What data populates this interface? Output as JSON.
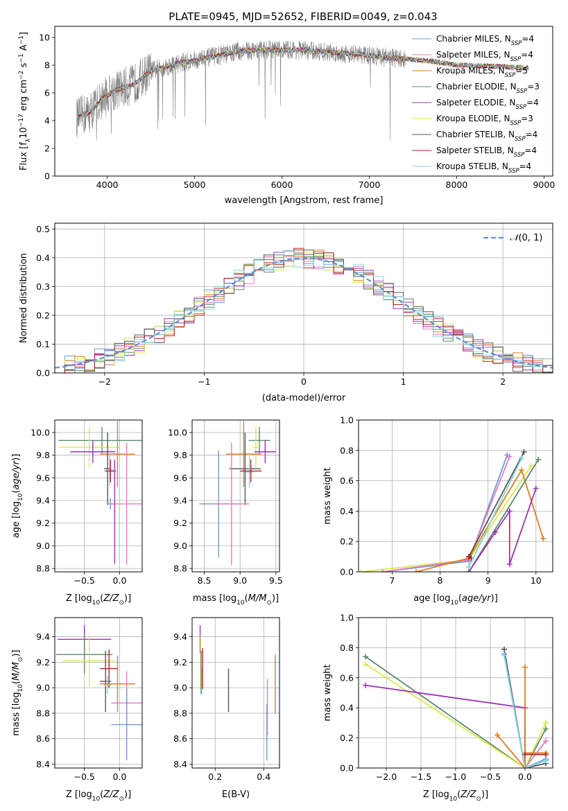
{
  "figure": {
    "title": "PLATE=0945, MJD=52652, FIBERID=0049, z=0.043"
  },
  "series_styles": [
    {
      "name": "Chabrier MILES, N_SSP=4",
      "color": "#6b9bd6"
    },
    {
      "name": "Salpeter MILES, N_SSP=4",
      "color": "#e37bc1"
    },
    {
      "name": "Kroupa MILES, N_SSP=5",
      "color": "#e07a1f"
    },
    {
      "name": "Chabrier ELODIE, N_SSP=3",
      "color": "#5a8a6a"
    },
    {
      "name": "Salpeter ELODIE, N_SSP=4",
      "color": "#9b30b8"
    },
    {
      "name": "Kroupa ELODIE, N_SSP=3",
      "color": "#d8e84a"
    },
    {
      "name": "Chabrier STELIB, N_SSP=4",
      "color": "#555555"
    },
    {
      "name": "Salpeter STELIB, N_SSP=4",
      "color": "#b22222"
    },
    {
      "name": "Kroupa STELIB, N_SSP=4",
      "color": "#7fd6dc"
    }
  ],
  "legend_spectrum": [
    {
      "base": "Chabrier MILES, N",
      "sub": "SSP",
      "tail": "=4",
      "color": "#6b9bd6"
    },
    {
      "base": "Salpeter MILES, N",
      "sub": "SSP",
      "tail": "=4",
      "color": "#e37bc1"
    },
    {
      "base": "Kroupa MILES, N",
      "sub": "SSP",
      "tail": "=5",
      "color": "#e07a1f"
    },
    {
      "base": "Chabrier ELODIE, N",
      "sub": "SSP",
      "tail": "=3",
      "color": "#5a8a6a"
    },
    {
      "base": "Salpeter ELODIE, N",
      "sub": "SSP",
      "tail": "=4",
      "color": "#9b30b8"
    },
    {
      "base": "Kroupa ELODIE, N",
      "sub": "SSP",
      "tail": "=3",
      "color": "#d8e84a"
    },
    {
      "base": "Chabrier STELIB, N",
      "sub": "SSP",
      "tail": "=4",
      "color": "#555555"
    },
    {
      "base": "Salpeter STELIB, N",
      "sub": "SSP",
      "tail": "=4",
      "color": "#b22222"
    },
    {
      "base": "Kroupa STELIB, N",
      "sub": "SSP",
      "tail": "=4",
      "color": "#7fd6dc"
    }
  ],
  "chart_data": [
    {
      "id": "spectrum",
      "type": "line",
      "xlabel": "wavelength [Angstrom, rest frame]",
      "ylabel": "Flux [f_λ 10^-17 erg cm^-2 s^-1 A^-1]",
      "xlim": [
        3400,
        9100
      ],
      "ylim": [
        0,
        10.8
      ],
      "xticks": [
        4000,
        5000,
        6000,
        7000,
        8000,
        9000
      ],
      "yticks": [
        0,
        2,
        4,
        6,
        8,
        10
      ],
      "legend": "top-right",
      "data_color": "#808080",
      "continuum": [
        [
          3650,
          4.2
        ],
        [
          3800,
          4.6
        ],
        [
          3950,
          5.6
        ],
        [
          4100,
          6.2
        ],
        [
          4300,
          6.6
        ],
        [
          4500,
          7.6
        ],
        [
          4800,
          8.1
        ],
        [
          5200,
          8.6
        ],
        [
          5500,
          9.0
        ],
        [
          5800,
          9.1
        ],
        [
          6200,
          9.1
        ],
        [
          6600,
          8.9
        ],
        [
          7000,
          8.7
        ],
        [
          7300,
          8.5
        ],
        [
          7700,
          8.3
        ],
        [
          8000,
          8.0
        ],
        [
          8500,
          7.9
        ],
        [
          8800,
          7.8
        ]
      ],
      "model_range": [
        3650,
        8820
      ],
      "data_range": [
        3650,
        7420
      ]
    },
    {
      "id": "residuals",
      "type": "histogram",
      "xlabel": "(data-model)/error",
      "ylabel": "Normed distribution",
      "xlim": [
        -2.5,
        2.5
      ],
      "ylim": [
        0,
        0.52
      ],
      "xticks": [
        -2,
        -1,
        0,
        1,
        2
      ],
      "yticks": [
        0.0,
        0.1,
        0.2,
        0.3,
        0.4,
        0.5
      ],
      "grid": true,
      "legend": "top-right",
      "reference_curve": {
        "name": "N(0,1)",
        "color": "#5b8fd9",
        "style": "dashed"
      },
      "bin_width": 0.1
    },
    {
      "id": "age-vs-Z",
      "type": "errorbar",
      "xlabel": "Z [log10(Z/Z⊙)]",
      "ylabel": "age [log10(age/yr)]",
      "xlim": [
        -0.92,
        0.32
      ],
      "ylim": [
        8.77,
        10.11
      ],
      "xticks": [
        -0.5,
        0.0
      ],
      "yticks": [
        8.8,
        9.0,
        9.2,
        9.4,
        9.6,
        9.8,
        10.0
      ],
      "points": [
        {
          "x": -0.25,
          "y": 9.93,
          "xerr": 0.62,
          "yerr": 0.12,
          "color": "#5a8a6a"
        },
        {
          "x": -0.43,
          "y": 9.87,
          "xerr": 0.43,
          "yerr": 0.18,
          "color": "#d8e84a"
        },
        {
          "x": -0.38,
          "y": 9.83,
          "xerr": 0.32,
          "yerr": 0.1,
          "color": "#9b30b8"
        },
        {
          "x": -0.03,
          "y": 9.81,
          "xerr": 0.25,
          "yerr": 0.29,
          "color": "#e07a1f"
        },
        {
          "x": -0.17,
          "y": 9.68,
          "xerr": 0.05,
          "yerr": 0.32,
          "color": "#555555"
        },
        {
          "x": -0.14,
          "y": 9.67,
          "xerr": 0.05,
          "yerr": 0.14,
          "color": "#7fd6dc"
        },
        {
          "x": -0.13,
          "y": 9.66,
          "xerr": 0.08,
          "yerr": 0.1,
          "color": "#b22222"
        },
        {
          "x": -0.13,
          "y": 9.37,
          "xerr": 0.05,
          "yerr": 0.05,
          "color": "#6b9bd6"
        },
        {
          "x": 0.1,
          "y": 9.37,
          "xerr": 0.22,
          "yerr": 0.54,
          "color": "#e37bc1"
        },
        {
          "x": -0.07,
          "y": 9.3,
          "xerr": 0.01,
          "yerr": 0.46,
          "color": "#9b30b8"
        }
      ]
    },
    {
      "id": "age-vs-mass",
      "type": "errorbar",
      "xlabel": "mass [log10(M/M⊙)]",
      "xlim": [
        8.33,
        9.55
      ],
      "ylim": [
        8.77,
        10.11
      ],
      "xticks": [
        8.5,
        9.0,
        9.5
      ],
      "yticks": [
        8.8,
        9.0,
        9.2,
        9.4,
        9.6,
        9.8,
        10.0
      ],
      "points": [
        {
          "x": 9.27,
          "y": 9.93,
          "xerr": 0.15,
          "yerr": 0.12,
          "color": "#5a8a6a"
        },
        {
          "x": 9.22,
          "y": 9.87,
          "xerr": 0.05,
          "yerr": 0.18,
          "color": "#d8e84a"
        },
        {
          "x": 9.35,
          "y": 9.83,
          "xerr": 0.15,
          "yerr": 0.1,
          "color": "#9b30b8"
        },
        {
          "x": 9.05,
          "y": 9.81,
          "xerr": 0.25,
          "yerr": 0.29,
          "color": "#e07a1f"
        },
        {
          "x": 9.07,
          "y": 9.68,
          "xerr": 0.22,
          "yerr": 0.32,
          "color": "#555555"
        },
        {
          "x": 9.13,
          "y": 9.65,
          "xerr": 0.05,
          "yerr": 0.14,
          "color": "#7fd6dc"
        },
        {
          "x": 9.15,
          "y": 9.66,
          "xerr": 0.15,
          "yerr": 0.1,
          "color": "#b22222"
        },
        {
          "x": 8.7,
          "y": 9.37,
          "xerr": 0.27,
          "yerr": 0.47,
          "color": "#6b9bd6"
        },
        {
          "x": 8.88,
          "y": 9.37,
          "xerr": 0.25,
          "yerr": 0.54,
          "color": "#e37bc1"
        }
      ]
    },
    {
      "id": "weight-vs-age",
      "type": "line",
      "xlabel": "age [log10(age/yr)]",
      "ylabel": "mass weight",
      "xlim": [
        6.3,
        10.35
      ],
      "ylim": [
        0,
        1
      ],
      "xticks": [
        7,
        8,
        9,
        10
      ],
      "yticks": [
        0.0,
        0.2,
        0.4,
        0.6,
        0.8,
        1.0
      ],
      "grid": true,
      "series": [
        {
          "color": "#d8e84a",
          "points": [
            [
              6.35,
              0.0
            ],
            [
              8.6,
              0.08
            ],
            [
              9.9,
              0.7
            ]
          ]
        },
        {
          "color": "#6b9bd6",
          "points": [
            [
              6.8,
              0.0
            ],
            [
              8.6,
              0.07
            ],
            [
              9.4,
              0.77
            ]
          ]
        },
        {
          "color": "#e37bc1",
          "points": [
            [
              6.8,
              0.0
            ],
            [
              8.6,
              0.08
            ],
            [
              9.45,
              0.76
            ]
          ]
        },
        {
          "color": "#e07a1f",
          "points": [
            [
              7.5,
              0.0
            ],
            [
              8.6,
              0.09
            ],
            [
              9.7,
              0.67
            ],
            [
              10.15,
              0.22
            ]
          ]
        },
        {
          "color": "#5a8a6a",
          "points": [
            [
              8.6,
              0.0
            ],
            [
              10.05,
              0.74
            ]
          ]
        },
        {
          "color": "#555555",
          "points": [
            [
              8.6,
              0.1
            ],
            [
              9.75,
              0.79
            ]
          ]
        },
        {
          "color": "#9b30b8",
          "points": [
            [
              8.6,
              0.0
            ],
            [
              9.15,
              0.26
            ],
            [
              9.45,
              0.4
            ],
            [
              9.45,
              0.05
            ],
            [
              10.0,
              0.55
            ]
          ]
        },
        {
          "color": "#b22222",
          "points": [
            [
              8.6,
              0.1
            ],
            [
              8.65,
              0.09
            ]
          ]
        },
        {
          "color": "#7fd6dc",
          "points": [
            [
              8.6,
              0.03
            ],
            [
              9.7,
              0.75
            ]
          ]
        }
      ]
    },
    {
      "id": "mass-vs-Z",
      "type": "errorbar",
      "xlabel": "Z [log10(Z/Z⊙)]",
      "ylabel": "mass [log10(M/M⊙)]",
      "xlim": [
        -0.92,
        0.32
      ],
      "ylim": [
        8.37,
        9.55
      ],
      "xticks": [
        -0.5,
        0.0
      ],
      "yticks": [
        8.4,
        8.6,
        8.8,
        9.0,
        9.2,
        9.4
      ],
      "points": [
        {
          "x": -0.5,
          "y": 9.38,
          "xerr": 0.38,
          "yerr": 0.11,
          "color": "#9b30b8"
        },
        {
          "x": -0.5,
          "y": 9.26,
          "xerr": 0.4,
          "yerr": 0.15,
          "color": "#5a8a6a"
        },
        {
          "x": -0.43,
          "y": 9.21,
          "xerr": 0.38,
          "yerr": 0.2,
          "color": "#d8e84a"
        },
        {
          "x": -0.15,
          "y": 9.15,
          "xerr": 0.13,
          "yerr": 0.15,
          "color": "#b22222"
        },
        {
          "x": -0.2,
          "y": 9.05,
          "xerr": 0.08,
          "yerr": 0.24,
          "color": "#555555"
        },
        {
          "x": -0.17,
          "y": 9.02,
          "xerr": 0.05,
          "yerr": 0.07,
          "color": "#7fd6dc"
        },
        {
          "x": -0.03,
          "y": 9.03,
          "xerr": 0.25,
          "yerr": 0.22,
          "color": "#e07a1f"
        },
        {
          "x": 0.1,
          "y": 8.88,
          "xerr": 0.22,
          "yerr": 0.25,
          "color": "#e37bc1"
        },
        {
          "x": 0.1,
          "y": 8.71,
          "xerr": 0.22,
          "yerr": 0.28,
          "color": "#6b9bd6"
        }
      ]
    },
    {
      "id": "mass-vs-ebv",
      "type": "errorbar",
      "xlabel": "E(B-V)",
      "xlim": [
        0.105,
        0.465
      ],
      "ylim": [
        8.37,
        9.55
      ],
      "xticks": [
        0.2,
        0.4
      ],
      "yticks": [
        8.4,
        8.6,
        8.8,
        9.0,
        9.2,
        9.4
      ],
      "points": [
        {
          "x": 0.138,
          "y": 9.38,
          "xerr": 0,
          "yerr": 0.11,
          "color": "#9b30b8"
        },
        {
          "x": 0.14,
          "y": 9.2,
          "xerr": 0,
          "yerr": 0.21,
          "color": "#d8e84a"
        },
        {
          "x": 0.142,
          "y": 9.12,
          "xerr": 0,
          "yerr": 0.17,
          "color": "#5a8a6a"
        },
        {
          "x": 0.145,
          "y": 9.05,
          "xerr": 0,
          "yerr": 0.1,
          "color": "#7fd6dc"
        },
        {
          "x": 0.148,
          "y": 9.15,
          "xerr": 0,
          "yerr": 0.16,
          "color": "#b22222"
        },
        {
          "x": 0.255,
          "y": 8.98,
          "xerr": 0,
          "yerr": 0.17,
          "color": "#555555"
        },
        {
          "x": 0.415,
          "y": 8.85,
          "xerr": 0,
          "yerr": 0.22,
          "color": "#e37bc1"
        },
        {
          "x": 0.413,
          "y": 8.65,
          "xerr": 0,
          "yerr": 0.22,
          "color": "#6b9bd6"
        },
        {
          "x": 0.448,
          "y": 9.03,
          "xerr": 0,
          "yerr": 0.23,
          "color": "#e07a1f"
        }
      ]
    },
    {
      "id": "weight-vs-Z",
      "type": "line",
      "xlabel": "Z [log10(Z/Z⊙)]",
      "ylabel": "mass weight",
      "xlim": [
        -2.4,
        0.4
      ],
      "ylim": [
        0,
        1
      ],
      "xticks": [
        -2.0,
        -1.5,
        -1.0,
        -0.5,
        0.0
      ],
      "yticks": [
        0.0,
        0.2,
        0.4,
        0.6,
        0.8,
        1.0
      ],
      "grid": true,
      "series": [
        {
          "color": "#5a8a6a",
          "points": [
            [
              -2.3,
              0.74
            ],
            [
              0.0,
              0.0
            ],
            [
              0.3,
              0.26
            ]
          ]
        },
        {
          "color": "#d8e84a",
          "points": [
            [
              -2.3,
              0.69
            ],
            [
              0.0,
              0.0
            ],
            [
              0.3,
              0.3
            ]
          ]
        },
        {
          "color": "#9b30b8",
          "points": [
            [
              -2.3,
              0.55
            ],
            [
              0.0,
              0.4
            ],
            [
              0.0,
              0.0
            ],
            [
              0.3,
              0.05
            ]
          ]
        },
        {
          "color": "#e07a1f",
          "points": [
            [
              -0.4,
              0.22
            ],
            [
              0.0,
              0.0
            ],
            [
              0.0,
              0.67
            ],
            [
              0.0,
              0.1
            ],
            [
              0.3,
              0.1
            ]
          ]
        },
        {
          "color": "#555555",
          "points": [
            [
              -0.3,
              0.79
            ],
            [
              0.0,
              0.0
            ],
            [
              0.3,
              0.03
            ]
          ]
        },
        {
          "color": "#6b9bd6",
          "points": [
            [
              -0.3,
              0.76
            ],
            [
              0.0,
              0.0
            ],
            [
              0.3,
              0.06
            ]
          ]
        },
        {
          "color": "#e37bc1",
          "points": [
            [
              -0.3,
              0.75
            ],
            [
              0.0,
              0.0
            ],
            [
              0.3,
              0.18
            ]
          ]
        },
        {
          "color": "#7fd6dc",
          "points": [
            [
              -0.3,
              0.75
            ],
            [
              0.0,
              0.0
            ],
            [
              0.3,
              0.05
            ]
          ]
        },
        {
          "color": "#b22222",
          "points": [
            [
              0.0,
              0.09
            ],
            [
              0.3,
              0.09
            ]
          ]
        }
      ]
    }
  ]
}
